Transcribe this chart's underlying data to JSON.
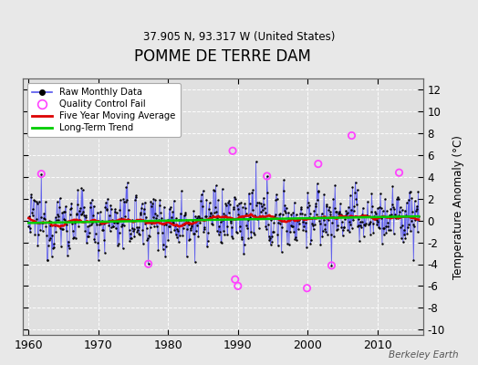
{
  "title": "POMME DE TERRE DAM",
  "subtitle": "37.905 N, 93.317 W (United States)",
  "ylabel": "Temperature Anomaly (°C)",
  "watermark": "Berkeley Earth",
  "xlim": [
    1959.2,
    2016.5
  ],
  "ylim": [
    -10.5,
    13
  ],
  "yticks": [
    -10,
    -8,
    -6,
    -4,
    -2,
    0,
    2,
    4,
    6,
    8,
    10,
    12
  ],
  "xticks": [
    1960,
    1970,
    1980,
    1990,
    2000,
    2010
  ],
  "fig_bg_color": "#e8e8e8",
  "plot_bg_color": "#e0e0e0",
  "grid_color": "#ffffff",
  "raw_line_color": "#5555ee",
  "raw_dot_color": "#000000",
  "ma_color": "#dd0000",
  "trend_color": "#00cc00",
  "qc_color": "#ff44ff",
  "seed": 12345
}
